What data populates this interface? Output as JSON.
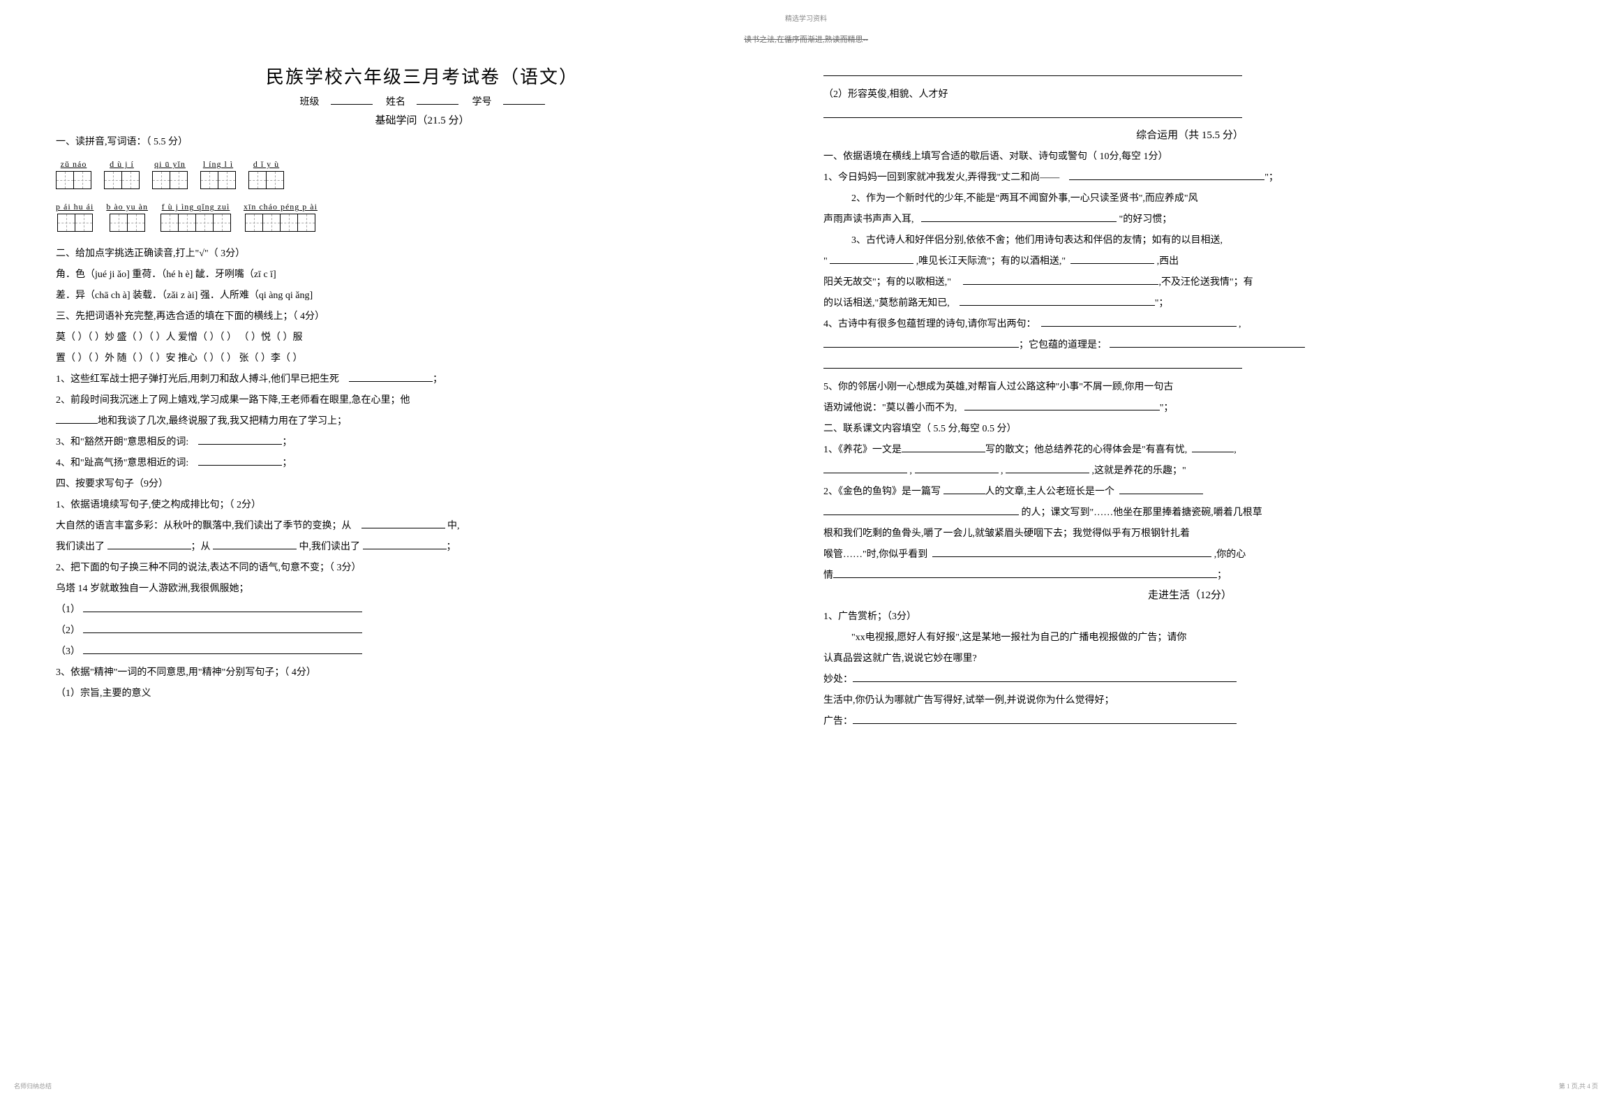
{
  "watermark": {
    "top": "精选学习资料",
    "top2": "读书之法,在循序而渐进,熟读而精思--",
    "footer_left": "名师归纳总结",
    "footer_right": "第 1 页,共 4 页"
  },
  "title": "民族学校六年级三月考试卷（语文）",
  "info": {
    "class_label": "班级",
    "name_label": "姓名",
    "id_label": "学号"
  },
  "section1_title": "基础学问（21.5 分）",
  "q1_title": "一、读拼音,写词语：（ 5.5 分）",
  "pinyin_row1": [
    {
      "text": "zǔ náo",
      "boxes": 2
    },
    {
      "text": "d    ù j í",
      "boxes": 2
    },
    {
      "text": "qi    ū yǐn",
      "boxes": 2
    },
    {
      "text": "l    íng l ì",
      "boxes": 2
    },
    {
      "text": "d    ǐ  y ù",
      "boxes": 2
    }
  ],
  "pinyin_row2": [
    {
      "text": "p ái hu ái",
      "boxes": 2
    },
    {
      "text": "b    ào yu àn",
      "boxes": 2
    },
    {
      "text": "f    ù j  ìng qǐng zuì",
      "boxes": 4
    },
    {
      "text": "xīn cháo péng p ài",
      "boxes": 4
    }
  ],
  "q2_title": "二、给加点字挑选正确读音,打上\"√\"（        3分）",
  "q2_line1": "角．色（jué ji ǎo]       重荷．（hé h è]        龇．牙咧嘴（zī   c   ī]",
  "q2_line2": "差．异（chā ch à]       装载．（zǎi z ài]       强．人所难（qi àng qi ǎng]",
  "q3_title": "三、先把词语补充完整,再选合适的填在下面的横线上；（        4分）",
  "q3_line1": "莫（    ）（    ）妙      盛（    ）（    ）人      爱憎（    ）（    ）      （   ）悦（    ）服",
  "q3_line2": "置（    ）（    ）外      随（    ）（    ）安      推心（    ）（    ）      张（    ）李（    ）",
  "q3_item1": " 1、这些红军战士把子弹打光后,用刺刀和敌人搏斗,他们早已把生死",
  "q3_item2": "2、前段时间我沉迷上了网上嬉戏,学习成果一路下降,王老师看在眼里,急在心里；他",
  "q3_item2b": "地和我谈了几次,最终说服了我,我又把精力用在了学习上；",
  "q3_item3": "3、和\"豁然开朗\"意思相反的词:",
  "q3_item4": "4、和\"趾高气扬\"意思相近的词:",
  "q4_title": "四、按要求写句子（9分）",
  "q4_item1": " 1、依据语境续写句子,使之构成排比句；（     2分）",
  "q4_line1a": "大自然的语言丰富多彩：从秋叶的飘落中,我们读出了季节的变换；从",
  "q4_line1b": "中,",
  "q4_line1c": "我们读出了",
  "q4_line1d": "；从",
  "q4_line1e": "中,我们读出了",
  "q4_item2": " 2、把下面的句子换三种不同的说法,表达不同的语气,句意不变；（        3分）",
  "q4_line2": "乌塔 14 岁就敢独自一人游欧洲,我很佩服她；",
  "q4_p1": "（1）",
  "q4_p2": "（2）",
  "q4_p3": "（3）",
  "q4_item3": "3、依据\"精神\"一词的不同意思,用\"精神\"分别写句子；（            4分）",
  "q4_sub1": "（1）宗旨,主要的意义",
  "q4_sub2": "（2）形容英俊,相貌、人才好",
  "section2_title": "综合运用（共 15.5 分）",
  "s2_q1_title": "一、依据语境在横线上填写合适的歇后语、对联、诗句或警句（      10分,每空 1分）",
  "s2_q1_1": "1、今日妈妈一回到家就冲我发火,弄得我\"丈二和尚——",
  "s2_q1_2": "2、作为一个新时代的少年,不能是\"两耳不闻窗外事,一心只读圣贤书\",而应养成\"风",
  "s2_q1_2b": "声雨声读书声声入耳,",
  "s2_q1_2c": "\"的好习惯；",
  "s2_q1_3": "3、古代诗人和好伴侣分别,依依不舍；他们用诗句表达和伴侣的友情；如有的以目相送,",
  "s2_q1_3b": "\"",
  "s2_q1_3c": ",唯见长江天际流\"；有的以酒相送,\"",
  "s2_q1_3d": ",西出",
  "s2_q1_3e": "阳关无故交\"；有的以歌相送,\"",
  "s2_q1_3f": ",不及汪伦送我情\"；有",
  "s2_q1_3g": "的以话相送,\"莫愁前路无知已,",
  "s2_q1_3h": "\"；",
  "s2_q1_4": "4、古诗中有很多包蕴哲理的诗句,请你写出两句：",
  "s2_q1_4b": "；它包蕴的道理是：",
  "s2_q1_5": "5、你的邻居小刚一心想成为英雄,对帮盲人过公路这种\"小事\"不屑一顾,你用一句古",
  "s2_q1_5b": "语劝诫他说：\"莫以善小而不为,",
  "s2_q1_5c": "\"；",
  "s2_q2_title": "二、联系课文内容填空（ 5.5 分,每空 0.5 分）",
  "s2_q2_1": "1、《养花》一文是",
  "s2_q2_1b": "写的散文；他总结养花的心得体会是\"有喜有忧,",
  "s2_q2_1c": ",",
  "s2_q2_1d": ",",
  "s2_q2_1e": ",",
  "s2_q2_1f": ",这就是养花的乐趣；\"",
  "s2_q2_2": "2、《金色的鱼钩》是一篇写",
  "s2_q2_2b": "人的文章,主人公老班长是一个",
  "s2_q2_2c": "的人；课文写到\"……他坐在那里捧着搪瓷碗,嚼着几根草",
  "s2_q2_2d": "根和我们吃剩的鱼骨头,嚼了一会儿,就皱紧眉头硬咽下去；我觉得似乎有万根钢针扎着",
  "s2_q2_2e": "喉管……\"时,你似乎看到",
  "s2_q2_2f": ",你的心",
  "s2_q2_2g": "情",
  "section3_title": "走进生活（12分）",
  "s3_q1": "1、广告赏析；（3分）",
  "s3_q1_a": "\"xx电视报,愿好人有好报\",这是某地一报社为自己的广播电视报做的广告；请你",
  "s3_q1_b": "认真品尝这就广告,说说它妙在哪里?",
  "s3_q1_c": "妙处：",
  "s3_q1_d": "生活中,你仍认为哪就广告写得好,试举一例,并说说你为什么觉得好；",
  "s3_q1_e": "广告："
}
